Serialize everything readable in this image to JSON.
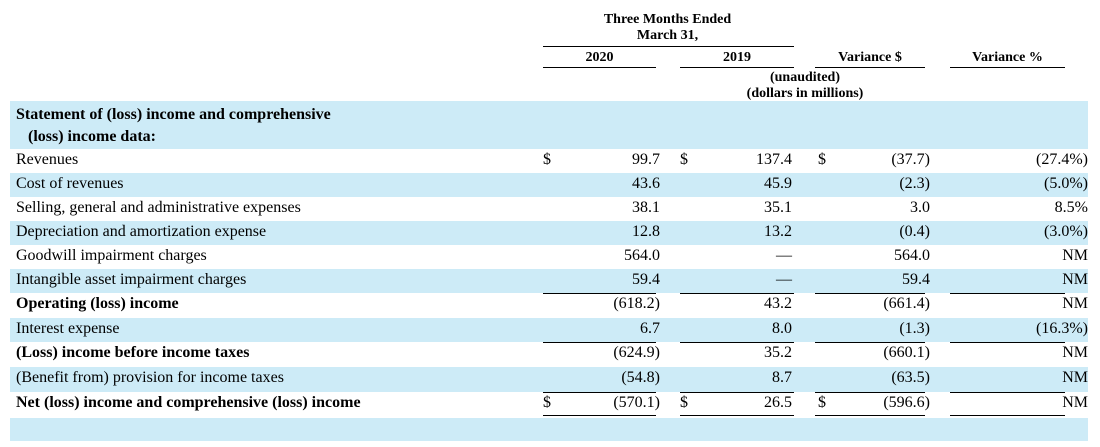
{
  "header": {
    "period_line1": "Three Months Ended",
    "period_line2": "March 31,",
    "col_2020": "2020",
    "col_2019": "2019",
    "col_var_dollar": "Variance $",
    "col_var_pct": "Variance %",
    "unaudited": "(unaudited)",
    "units": "(dollars in millions)"
  },
  "section": {
    "line1": "Statement of (loss) income and comprehensive",
    "line2": "(loss) income data:"
  },
  "currency_symbol": "$",
  "rows": [
    {
      "label": "Revenues",
      "v2020": "99.7",
      "v2019": "137.4",
      "var_dollar": "(37.7)",
      "var_pct": "(27.4%)"
    },
    {
      "label": "Cost of revenues",
      "v2020": "43.6",
      "v2019": "45.9",
      "var_dollar": "(2.3)",
      "var_pct": "(5.0%)"
    },
    {
      "label": "Selling, general and administrative expenses",
      "v2020": "38.1",
      "v2019": "35.1",
      "var_dollar": "3.0",
      "var_pct": "8.5%"
    },
    {
      "label": "Depreciation and amortization expense",
      "v2020": "12.8",
      "v2019": "13.2",
      "var_dollar": "(0.4)",
      "var_pct": "(3.0%)"
    },
    {
      "label": "Goodwill impairment charges",
      "v2020": "564.0",
      "v2019": "—",
      "var_dollar": "564.0",
      "var_pct": "NM"
    },
    {
      "label": "Intangible asset impairment charges",
      "v2020": "59.4",
      "v2019": "—",
      "var_dollar": "59.4",
      "var_pct": "NM"
    },
    {
      "label": "Operating (loss) income",
      "v2020": "(618.2)",
      "v2019": "43.2",
      "var_dollar": "(661.4)",
      "var_pct": "NM"
    },
    {
      "label": "Interest expense",
      "v2020": "6.7",
      "v2019": "8.0",
      "var_dollar": "(1.3)",
      "var_pct": "(16.3%)"
    },
    {
      "label": "(Loss) income before income taxes",
      "v2020": "(624.9)",
      "v2019": "35.2",
      "var_dollar": "(660.1)",
      "var_pct": "NM"
    },
    {
      "label": "(Benefit from) provision for income taxes",
      "v2020": "(54.8)",
      "v2019": "8.7",
      "var_dollar": "(63.5)",
      "var_pct": "NM"
    },
    {
      "label": "Net (loss) income and comprehensive (loss) income",
      "v2020": "(570.1)",
      "v2019": "26.5",
      "var_dollar": "(596.6)",
      "var_pct": "NM"
    }
  ]
}
